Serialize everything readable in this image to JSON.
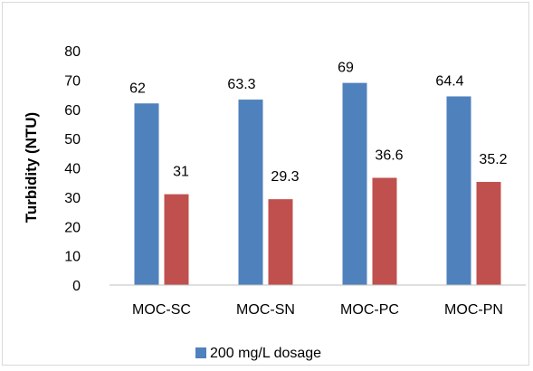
{
  "chart_data": {
    "type": "bar",
    "categories": [
      "MOC-SC",
      "MOC-SN",
      "MOC-PC",
      "MOC-PN"
    ],
    "series": [
      {
        "name": "200 mg/L dosage",
        "values": [
          62,
          63.3,
          69,
          64.4
        ],
        "color": "#4f81bd"
      },
      {
        "values": [
          31,
          29.3,
          36.6,
          35.2
        ],
        "color": "#c0504d"
      }
    ],
    "data_labels": [
      [
        "62",
        "63.3",
        "69",
        "64.4"
      ],
      [
        "31",
        "29.3",
        "36.6",
        "35.2"
      ]
    ],
    "ylabel": "Turbidity (NTU)",
    "ylim": [
      0,
      80
    ],
    "yticks": [
      0,
      10,
      20,
      30,
      40,
      50,
      60,
      70,
      80
    ],
    "grid": false,
    "legend_position": "bottom"
  }
}
